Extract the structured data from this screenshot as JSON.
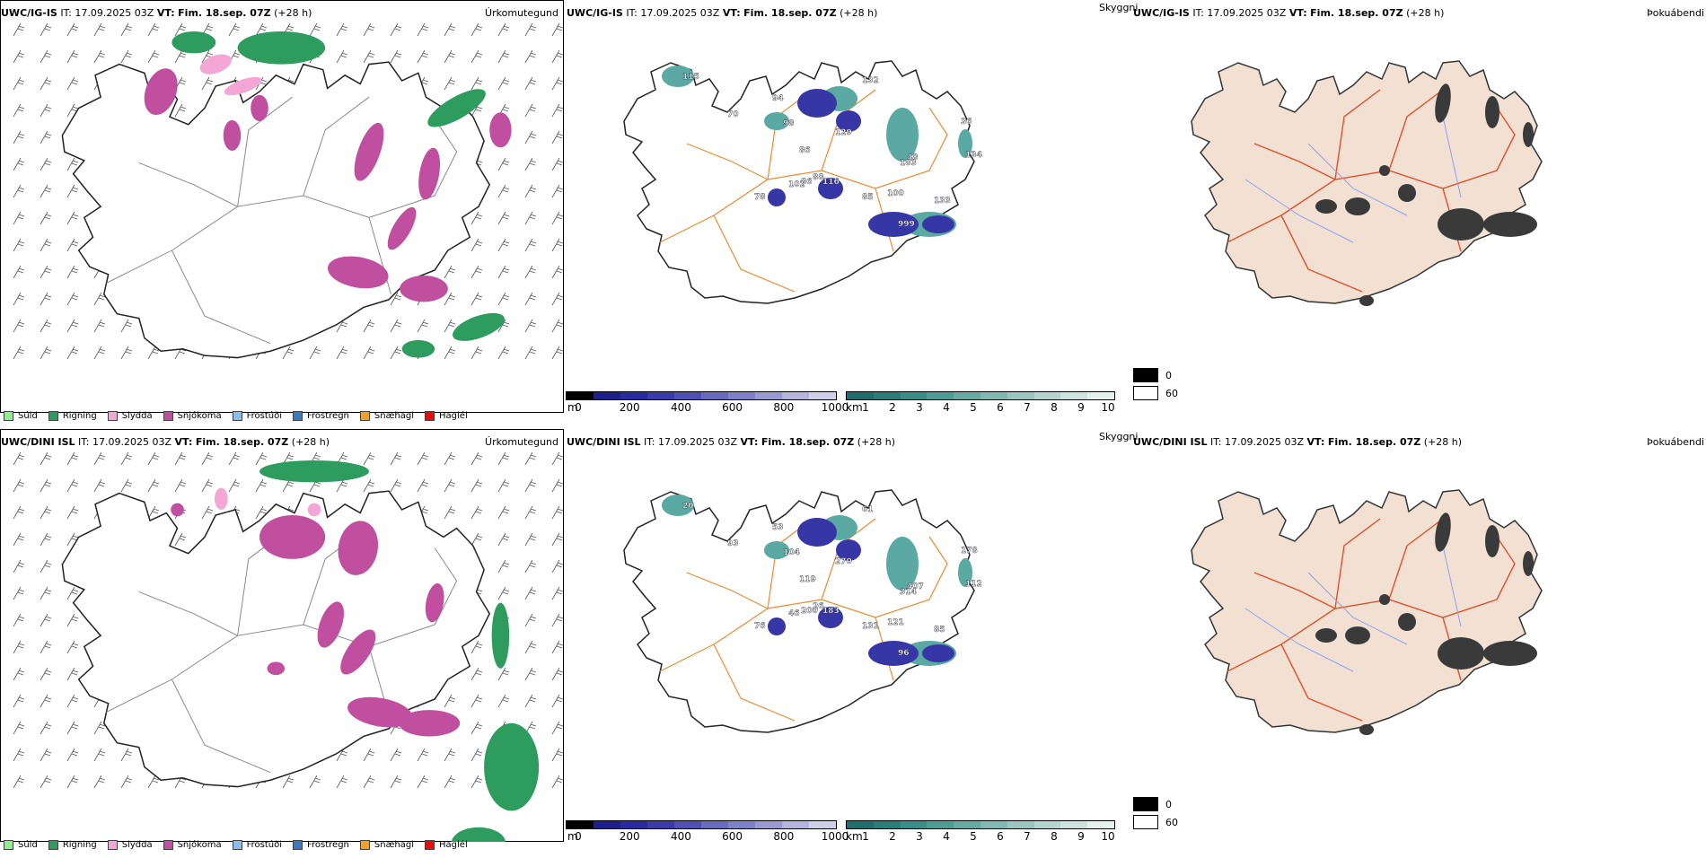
{
  "panels": [
    {
      "model": "UWC/IG-IS",
      "it_label": "IT:",
      "it_value": "17.09.2025 03Z",
      "vt_label": "VT:",
      "vt_value": "Fim. 18.sep. 07Z",
      "lead": "(+28 h)",
      "precip_title": "Úrkomutegund",
      "vis_title": "Skyggni",
      "fog_title": "Þokuábendi",
      "labels": [
        "115",
        "94",
        "132",
        "98",
        "86",
        "129",
        "78",
        "102",
        "86",
        "116",
        "85",
        "100",
        "133",
        "999",
        "36",
        "134",
        "48",
        "183",
        "70",
        "88"
      ]
    },
    {
      "model": "UWC/DINI ISL",
      "it_label": "IT:",
      "it_value": "17.09.2025 03Z",
      "vt_label": "VT:",
      "vt_value": "Fim. 18.sep. 07Z",
      "lead": "(+28 h)",
      "precip_title": "Úrkomutegund",
      "vis_title": "Skyggni",
      "fog_title": "Þokuábendi",
      "labels": [
        "20",
        "53",
        "61",
        "104",
        "119",
        "270",
        "76",
        "46",
        "200",
        "183",
        "131",
        "121",
        "85",
        "96",
        "178",
        "112",
        "407",
        "314",
        "93",
        "26"
      ]
    }
  ],
  "precip_legend": [
    {
      "label": "Súld",
      "color": "#90ee90"
    },
    {
      "label": "Rigning",
      "color": "#2e9c5e"
    },
    {
      "label": "Slydda",
      "color": "#f4a6d4"
    },
    {
      "label": "Snjókoma",
      "color": "#c04fa0"
    },
    {
      "label": "Frostúði",
      "color": "#8fbbe8"
    },
    {
      "label": "Frostregn",
      "color": "#3b78c0"
    },
    {
      "label": "Snæhagl",
      "color": "#f0a030"
    },
    {
      "label": "Haglél",
      "color": "#e01010"
    }
  ],
  "ceiling_bar": {
    "unit": "m",
    "ticks": [
      "0",
      "200",
      "400",
      "600",
      "800",
      "1000"
    ],
    "colors": [
      "#000000",
      "#1e1e8c",
      "#2a2aa0",
      "#3a3aaa",
      "#5050b4",
      "#6a6abe",
      "#8080c8",
      "#9a9ad2",
      "#b4b4dc",
      "#d0d0ea"
    ]
  },
  "vis_bar": {
    "unit": "km",
    "ticks": [
      "1",
      "2",
      "3",
      "4",
      "5",
      "6",
      "7",
      "8",
      "9",
      "10"
    ],
    "colors": [
      "#1f6e6e",
      "#2a7e7a",
      "#3a8e88",
      "#4e9c96",
      "#66aaa4",
      "#80b8b2",
      "#9ac6c0",
      "#b4d4d0",
      "#cee2de",
      "#e6f0ee"
    ]
  },
  "fog_legend": [
    {
      "value": "0",
      "color": "#000000"
    },
    {
      "value": "60",
      "color": "#ffffff"
    }
  ]
}
